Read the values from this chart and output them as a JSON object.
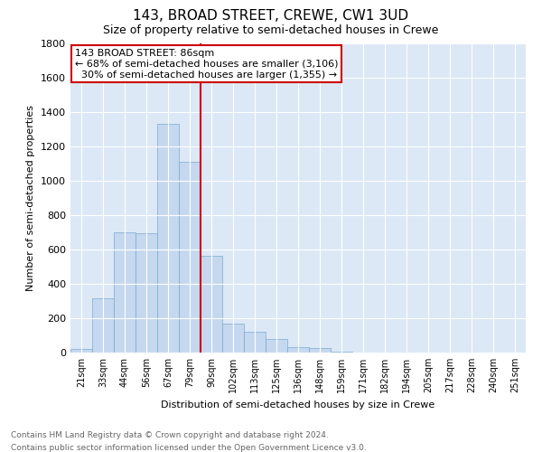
{
  "title": "143, BROAD STREET, CREWE, CW1 3UD",
  "subtitle": "Size of property relative to semi-detached houses in Crewe",
  "xlabel": "Distribution of semi-detached houses by size in Crewe",
  "ylabel": "Number of semi-detached properties",
  "footnote1": "Contains HM Land Registry data © Crown copyright and database right 2024.",
  "footnote2": "Contains public sector information licensed under the Open Government Licence v3.0.",
  "categories": [
    "21sqm",
    "33sqm",
    "44sqm",
    "56sqm",
    "67sqm",
    "79sqm",
    "90sqm",
    "102sqm",
    "113sqm",
    "125sqm",
    "136sqm",
    "148sqm",
    "159sqm",
    "171sqm",
    "182sqm",
    "194sqm",
    "205sqm",
    "217sqm",
    "228sqm",
    "240sqm",
    "251sqm"
  ],
  "values": [
    20,
    315,
    700,
    695,
    1330,
    1110,
    560,
    170,
    120,
    80,
    30,
    25,
    5,
    0,
    0,
    0,
    0,
    0,
    0,
    0,
    0
  ],
  "property_label": "143 BROAD STREET: 86sqm",
  "pct_smaller": 68,
  "num_smaller": 3106,
  "pct_larger": 30,
  "num_larger": 1355,
  "vline_index": 5.5,
  "bar_color": "#c5d8ef",
  "bar_edge_color": "#7aaacf",
  "vline_color": "#cc0000",
  "box_edge_color": "#cc0000",
  "background_color": "#dce8f5",
  "ylim": [
    0,
    1800
  ],
  "yticks": [
    0,
    200,
    400,
    600,
    800,
    1000,
    1200,
    1400,
    1600,
    1800
  ],
  "title_fontsize": 11,
  "subtitle_fontsize": 9,
  "axis_label_fontsize": 8,
  "tick_fontsize": 8,
  "xtick_fontsize": 7,
  "footnote_fontsize": 6.5,
  "annotation_fontsize": 8
}
